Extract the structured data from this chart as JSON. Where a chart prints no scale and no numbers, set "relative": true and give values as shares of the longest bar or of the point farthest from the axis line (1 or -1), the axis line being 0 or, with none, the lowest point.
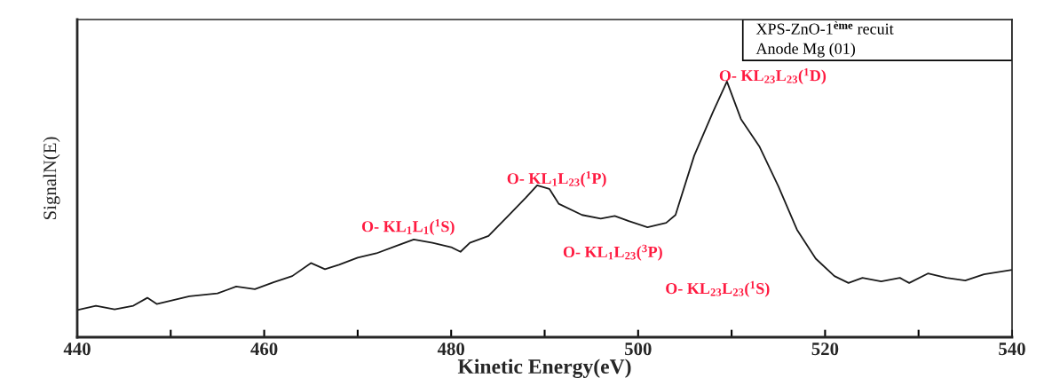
{
  "chart_data": {
    "type": "line",
    "relative": true,
    "xlabel": "Kinetic Energy(eV)",
    "ylabel": "SignalN(E)",
    "xlim": [
      440,
      540
    ],
    "xticks": [
      440,
      {
        "value": 450,
        "label": null
      },
      460,
      {
        "value": 470,
        "label": null
      },
      480,
      {
        "value": 490,
        "label": null
      },
      500,
      {
        "value": 510,
        "label": null
      },
      520,
      {
        "value": 530,
        "label": null
      },
      540
    ],
    "grid": false,
    "legend": false,
    "marker": "none",
    "line_style": "solid",
    "series": [
      {
        "color": "#1a1a1a",
        "x": [
          440,
          442,
          444,
          446,
          447.5,
          448.5,
          452,
          455,
          457,
          459,
          461,
          463,
          465,
          466.5,
          468,
          470,
          472,
          474,
          476,
          478,
          480,
          481,
          482,
          484,
          486,
          488,
          489.2,
          490.5,
          491.5,
          494,
          496,
          497.5,
          499,
          501,
          503,
          504,
          506,
          508,
          509.5,
          511,
          513,
          515,
          517,
          519,
          521,
          522.5,
          524,
          526,
          528,
          529,
          531,
          533,
          535,
          537,
          540
        ],
        "values": [
          0.106,
          0.123,
          0.109,
          0.123,
          0.154,
          0.13,
          0.16,
          0.171,
          0.198,
          0.188,
          0.215,
          0.239,
          0.29,
          0.266,
          0.283,
          0.311,
          0.328,
          0.355,
          0.382,
          0.369,
          0.352,
          0.334,
          0.369,
          0.396,
          0.471,
          0.546,
          0.594,
          0.58,
          0.522,
          0.478,
          0.464,
          0.474,
          0.454,
          0.43,
          0.447,
          0.478,
          0.71,
          0.88,
          1.0,
          0.853,
          0.744,
          0.59,
          0.42,
          0.307,
          0.239,
          0.212,
          0.232,
          0.218,
          0.232,
          0.212,
          0.249,
          0.232,
          0.222,
          0.246,
          0.263
        ]
      }
    ],
    "annotations": [
      "O- KL$_{1}$L$_{1}$($^{1}$S)",
      "O- KL$_{1}$L$_{23}$($^{1}$P)",
      "O- KL$_{1}$L$_{23}$($^{3}$P)",
      "O- KL$_{23}$L$_{23}$($^{1}$S)",
      "O- KL$_{23}$L$_{23}$($^{1}$D)",
      "XPS-ZnO-1$^{ème}$ recuit",
      "Anode Mg (01)"
    ]
  }
}
